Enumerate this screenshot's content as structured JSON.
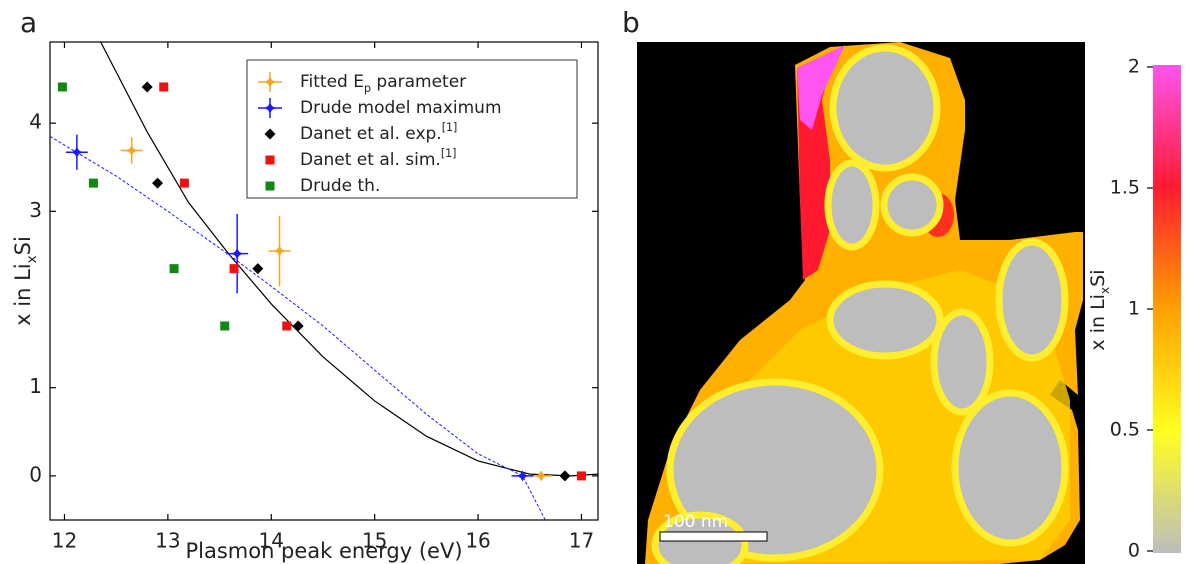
{
  "chart_data": [
    {
      "type": "scatter",
      "panel_label": "a",
      "xlabel": "Plasmon peak energy (eV)",
      "ylabel": [
        {
          "text": "x in Li"
        },
        {
          "text": "x",
          "sub": true
        },
        {
          "text": "Si"
        }
      ],
      "xlim": [
        11.86,
        17.16
      ],
      "ylim": [
        -0.5,
        4.92
      ],
      "xticks": [
        12,
        13,
        14,
        15,
        16,
        17
      ],
      "yticks": [
        0,
        1,
        3,
        4
      ],
      "series": [
        {
          "name": [
            {
              "text": "Fitted E"
            },
            {
              "text": "p",
              "sub": true
            },
            {
              "text": " parameter"
            }
          ],
          "color": "#f5a623",
          "marker": "star",
          "x": [
            12.65,
            14.08,
            16.61
          ],
          "values": [
            3.69,
            2.55,
            0
          ],
          "errors": [
            0.15,
            0.4,
            0
          ]
        },
        {
          "name": [
            {
              "text": "Drude model maximum"
            }
          ],
          "color": "#1a1aff",
          "marker": "star",
          "x": [
            12.12,
            13.67,
            16.43
          ],
          "values": [
            3.67,
            2.52,
            0
          ],
          "errors": [
            0.2,
            0.45,
            0
          ]
        },
        {
          "name": [
            {
              "text": "Danet et al. exp."
            },
            {
              "text": "[1]",
              "sup": true
            }
          ],
          "color": "#000000",
          "marker": "diamond",
          "x": [
            12.8,
            12.9,
            13.87,
            14.26,
            16.84
          ],
          "values": [
            4.41,
            3.32,
            2.35,
            1.7,
            0
          ]
        },
        {
          "name": [
            {
              "text": "Danet et al. sim."
            },
            {
              "text": "[1]",
              "sup": true
            }
          ],
          "color": "#ee1111",
          "marker": "square",
          "x": [
            12.96,
            13.16,
            13.64,
            14.15,
            17.0
          ],
          "values": [
            4.41,
            3.32,
            2.35,
            1.7,
            0
          ]
        },
        {
          "name": [
            {
              "text": "Drude th."
            }
          ],
          "color": "#118811",
          "marker": "square",
          "x": [
            11.98,
            12.28,
            13.06,
            13.55
          ],
          "values": [
            4.41,
            3.32,
            2.35,
            1.7
          ]
        }
      ],
      "fits": [
        {
          "color": "#000000",
          "dashed": false,
          "x": [
            12.35,
            12.8,
            13.2,
            13.6,
            14.0,
            14.5,
            15.0,
            15.5,
            16.0,
            16.5,
            16.9,
            17.16
          ],
          "values": [
            4.92,
            3.9,
            3.1,
            2.5,
            1.95,
            1.35,
            0.85,
            0.45,
            0.17,
            0.02,
            0,
            0.02
          ]
        },
        {
          "color": "#1a1aff",
          "dashed": true,
          "x": [
            11.86,
            12.5,
            13.0,
            13.6,
            14.0,
            14.5,
            15.0,
            15.5,
            16.0,
            16.43,
            16.65
          ],
          "values": [
            3.85,
            3.4,
            3.0,
            2.5,
            2.15,
            1.7,
            1.2,
            0.7,
            0.25,
            0,
            -0.5
          ]
        }
      ]
    },
    {
      "type": "image",
      "panel_label": "b",
      "scale_bar": "100 nm",
      "colorbar": {
        "label": [
          {
            "text": "x in Li"
          },
          {
            "text": "x",
            "sub": true
          },
          {
            "text": "Si"
          }
        ],
        "lim": [
          0,
          2
        ],
        "ticks": [
          0,
          0.5,
          1,
          1.5,
          2
        ],
        "colors": [
          "#bdbdbd",
          "#ffff20",
          "#ffa000",
          "#ff1a30",
          "#ff55ee"
        ]
      }
    }
  ]
}
